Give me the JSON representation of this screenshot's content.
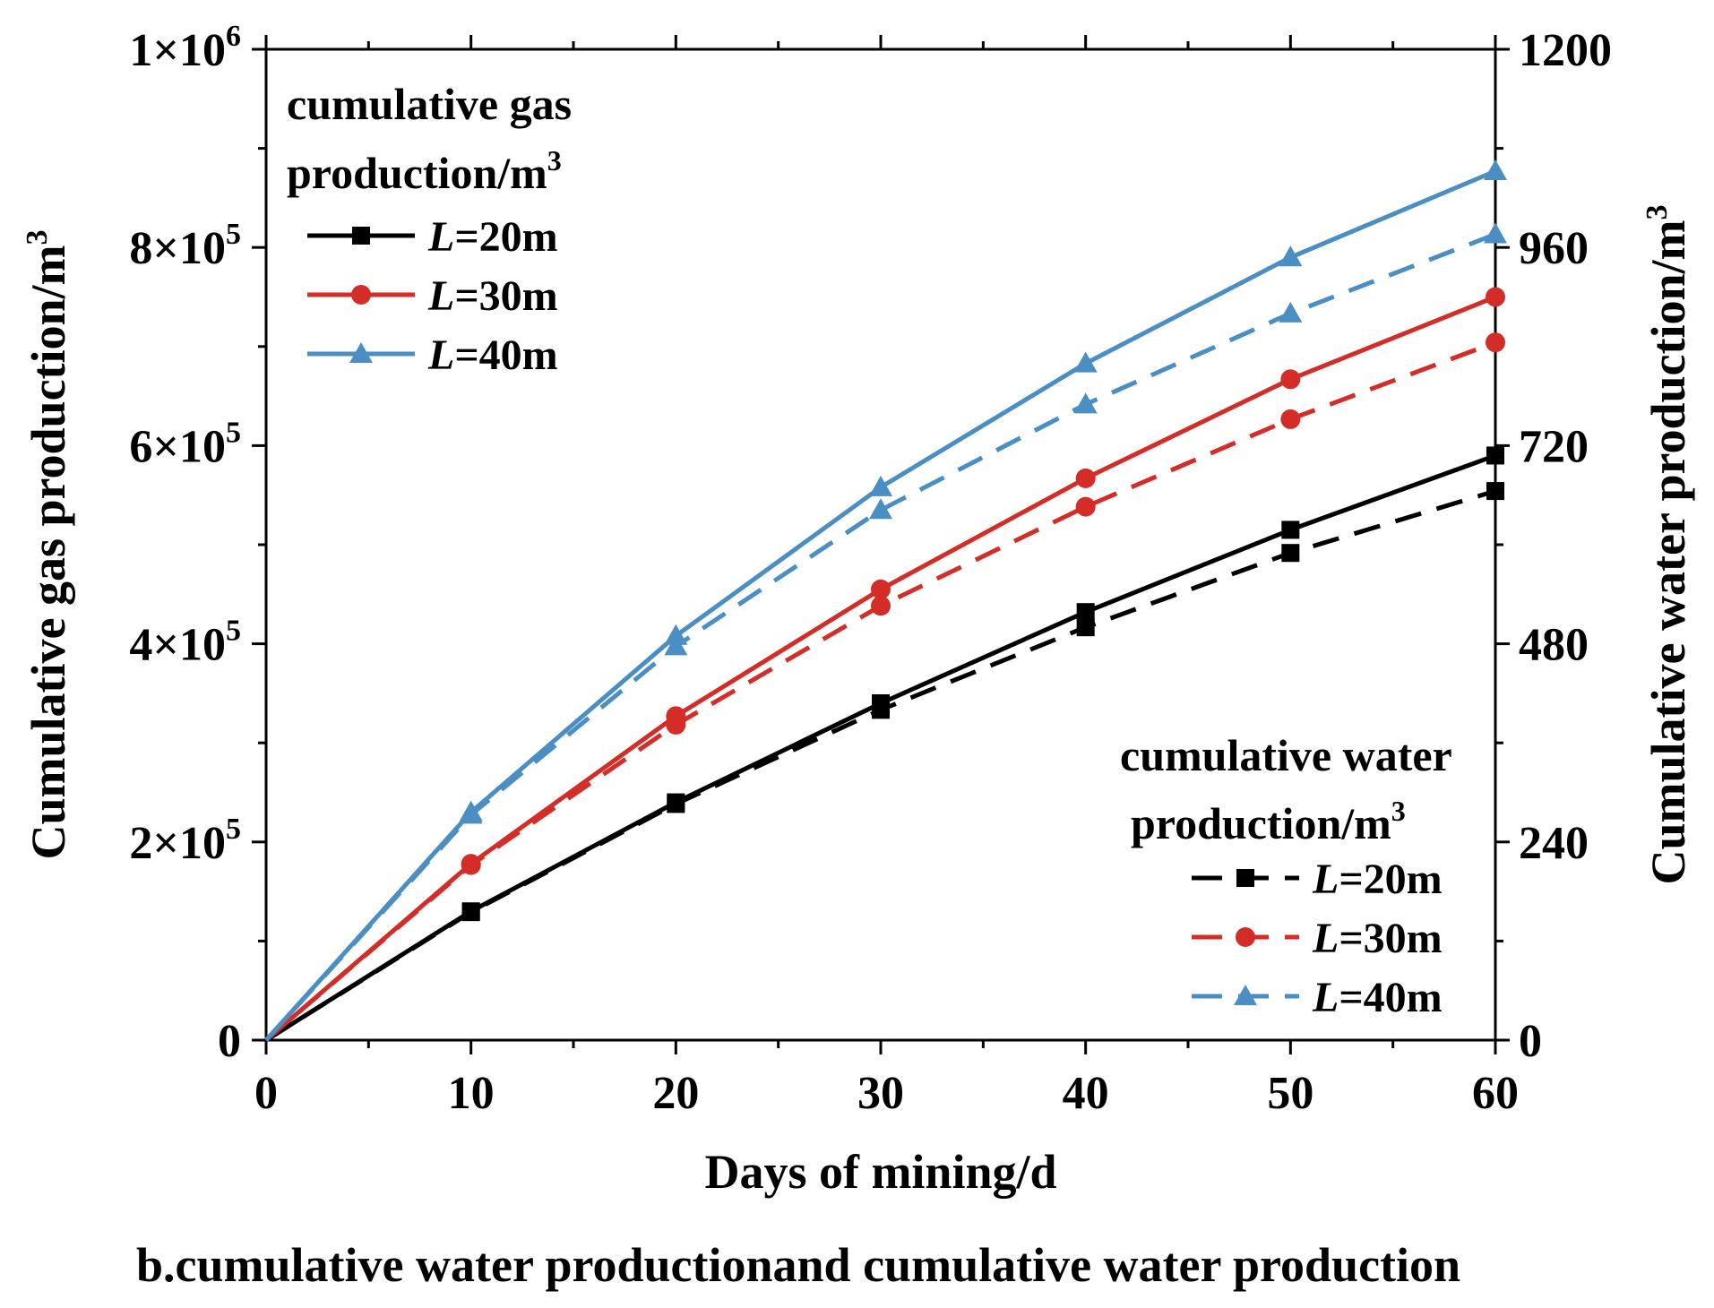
{
  "chart_data": {
    "type": "line",
    "caption": "b.cumulative water productionand cumulative water production",
    "x": [
      0,
      10,
      20,
      30,
      40,
      50,
      60
    ],
    "xlabel": "Days of mining/d",
    "xlim": [
      0,
      60
    ],
    "xticks": [
      "0",
      "10",
      "20",
      "30",
      "40",
      "50",
      "60"
    ],
    "y_left": {
      "label_main": "Cumulative gas production/m",
      "label_sup": "3",
      "lim": [
        0,
        1000000
      ],
      "tick_values": [
        0,
        200000,
        400000,
        600000,
        800000,
        1000000
      ],
      "tick_labels": [
        {
          "base": "0",
          "exp": ""
        },
        {
          "base": "2×10",
          "exp": "5"
        },
        {
          "base": "4×10",
          "exp": "5"
        },
        {
          "base": "6×10",
          "exp": "5"
        },
        {
          "base": "8×10",
          "exp": "5"
        },
        {
          "base": "1×10",
          "exp": "6"
        }
      ]
    },
    "y_right": {
      "label_main": "Cumulative water production/m",
      "label_sup": "3",
      "lim": [
        0,
        1200
      ],
      "tick_values": [
        0,
        240,
        480,
        720,
        960,
        1200
      ],
      "tick_labels": [
        "0",
        "240",
        "480",
        "720",
        "960",
        "1200"
      ]
    },
    "legend_gas": {
      "title_line1": "cumulative gas",
      "title_line2": "production/m",
      "title_sup": "3",
      "placement": "top-left"
    },
    "legend_water": {
      "title_line1": "cumulative water",
      "title_line2": "production/m",
      "title_sup": "3",
      "placement": "bottom-right"
    },
    "series": [
      {
        "group": "gas",
        "axis": "left",
        "name_var": "L",
        "name_rest": "=20m",
        "color": "#000000",
        "marker": "square",
        "dash": "solid",
        "values": [
          0,
          130000,
          240000,
          340000,
          432000,
          515000,
          590000
        ]
      },
      {
        "group": "gas",
        "axis": "left",
        "name_var": "L",
        "name_rest": "=30m",
        "color": "#d42d27",
        "marker": "circle",
        "dash": "solid",
        "values": [
          0,
          178000,
          327000,
          455000,
          567000,
          667000,
          750000
        ]
      },
      {
        "group": "gas",
        "axis": "left",
        "name_var": "L",
        "name_rest": "=40m",
        "color": "#4b8ec3",
        "marker": "triangle",
        "dash": "solid",
        "values": [
          0,
          230000,
          408000,
          558000,
          683000,
          790000,
          877000
        ]
      },
      {
        "group": "water",
        "axis": "right",
        "name_var": "L",
        "name_rest": "=20m",
        "color": "#000000",
        "marker": "square",
        "dash": "dashed",
        "values": [
          0,
          155,
          286,
          400,
          500,
          590,
          665
        ]
      },
      {
        "group": "water",
        "axis": "right",
        "name_var": "L",
        "name_rest": "=30m",
        "color": "#d42d27",
        "marker": "circle",
        "dash": "dashed",
        "values": [
          0,
          212,
          382,
          526,
          646,
          752,
          845
        ]
      },
      {
        "group": "water",
        "axis": "right",
        "name_var": "L",
        "name_rest": "=40m",
        "color": "#4b8ec3",
        "marker": "triangle",
        "dash": "dashed",
        "values": [
          0,
          273,
          477,
          642,
          770,
          880,
          976
        ]
      }
    ]
  }
}
